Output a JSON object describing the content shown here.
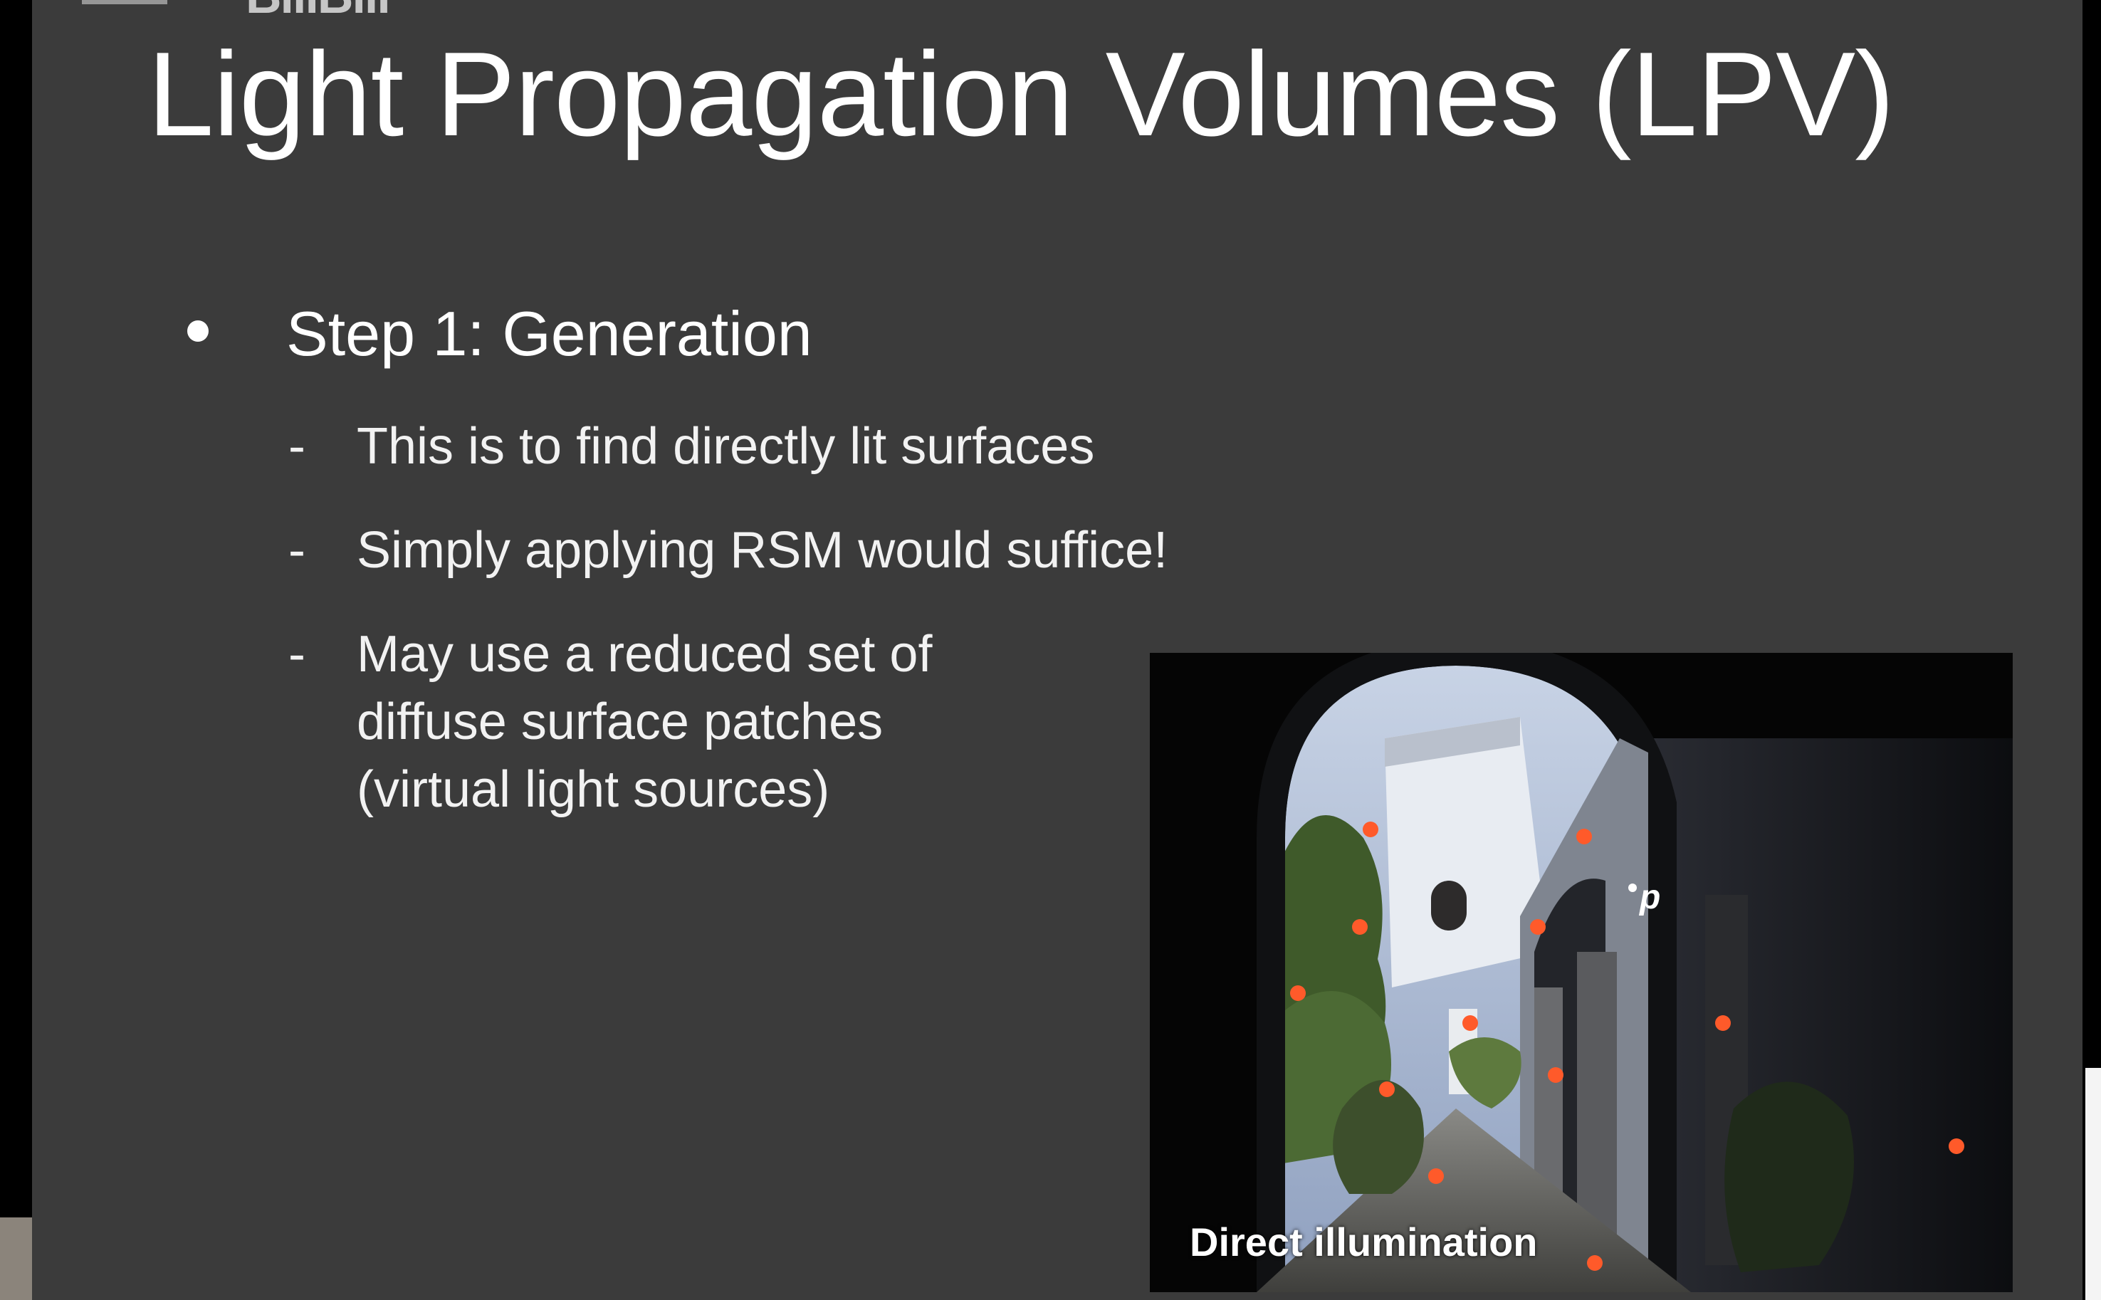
{
  "slide": {
    "title": "Light Propagation Volumes (LPV)",
    "bullet": "Step 1: Generation",
    "subpoints": [
      "This is to find directly lit surfaces",
      "Simply applying RSM would suffice!",
      "May use a reduced set of\ndiffuse surface patches\n(virtual light sources)"
    ],
    "dash": "-",
    "figure": {
      "caption": "Direct illumination",
      "point_label": "p",
      "marker_color": "#ff5a2a"
    }
  }
}
